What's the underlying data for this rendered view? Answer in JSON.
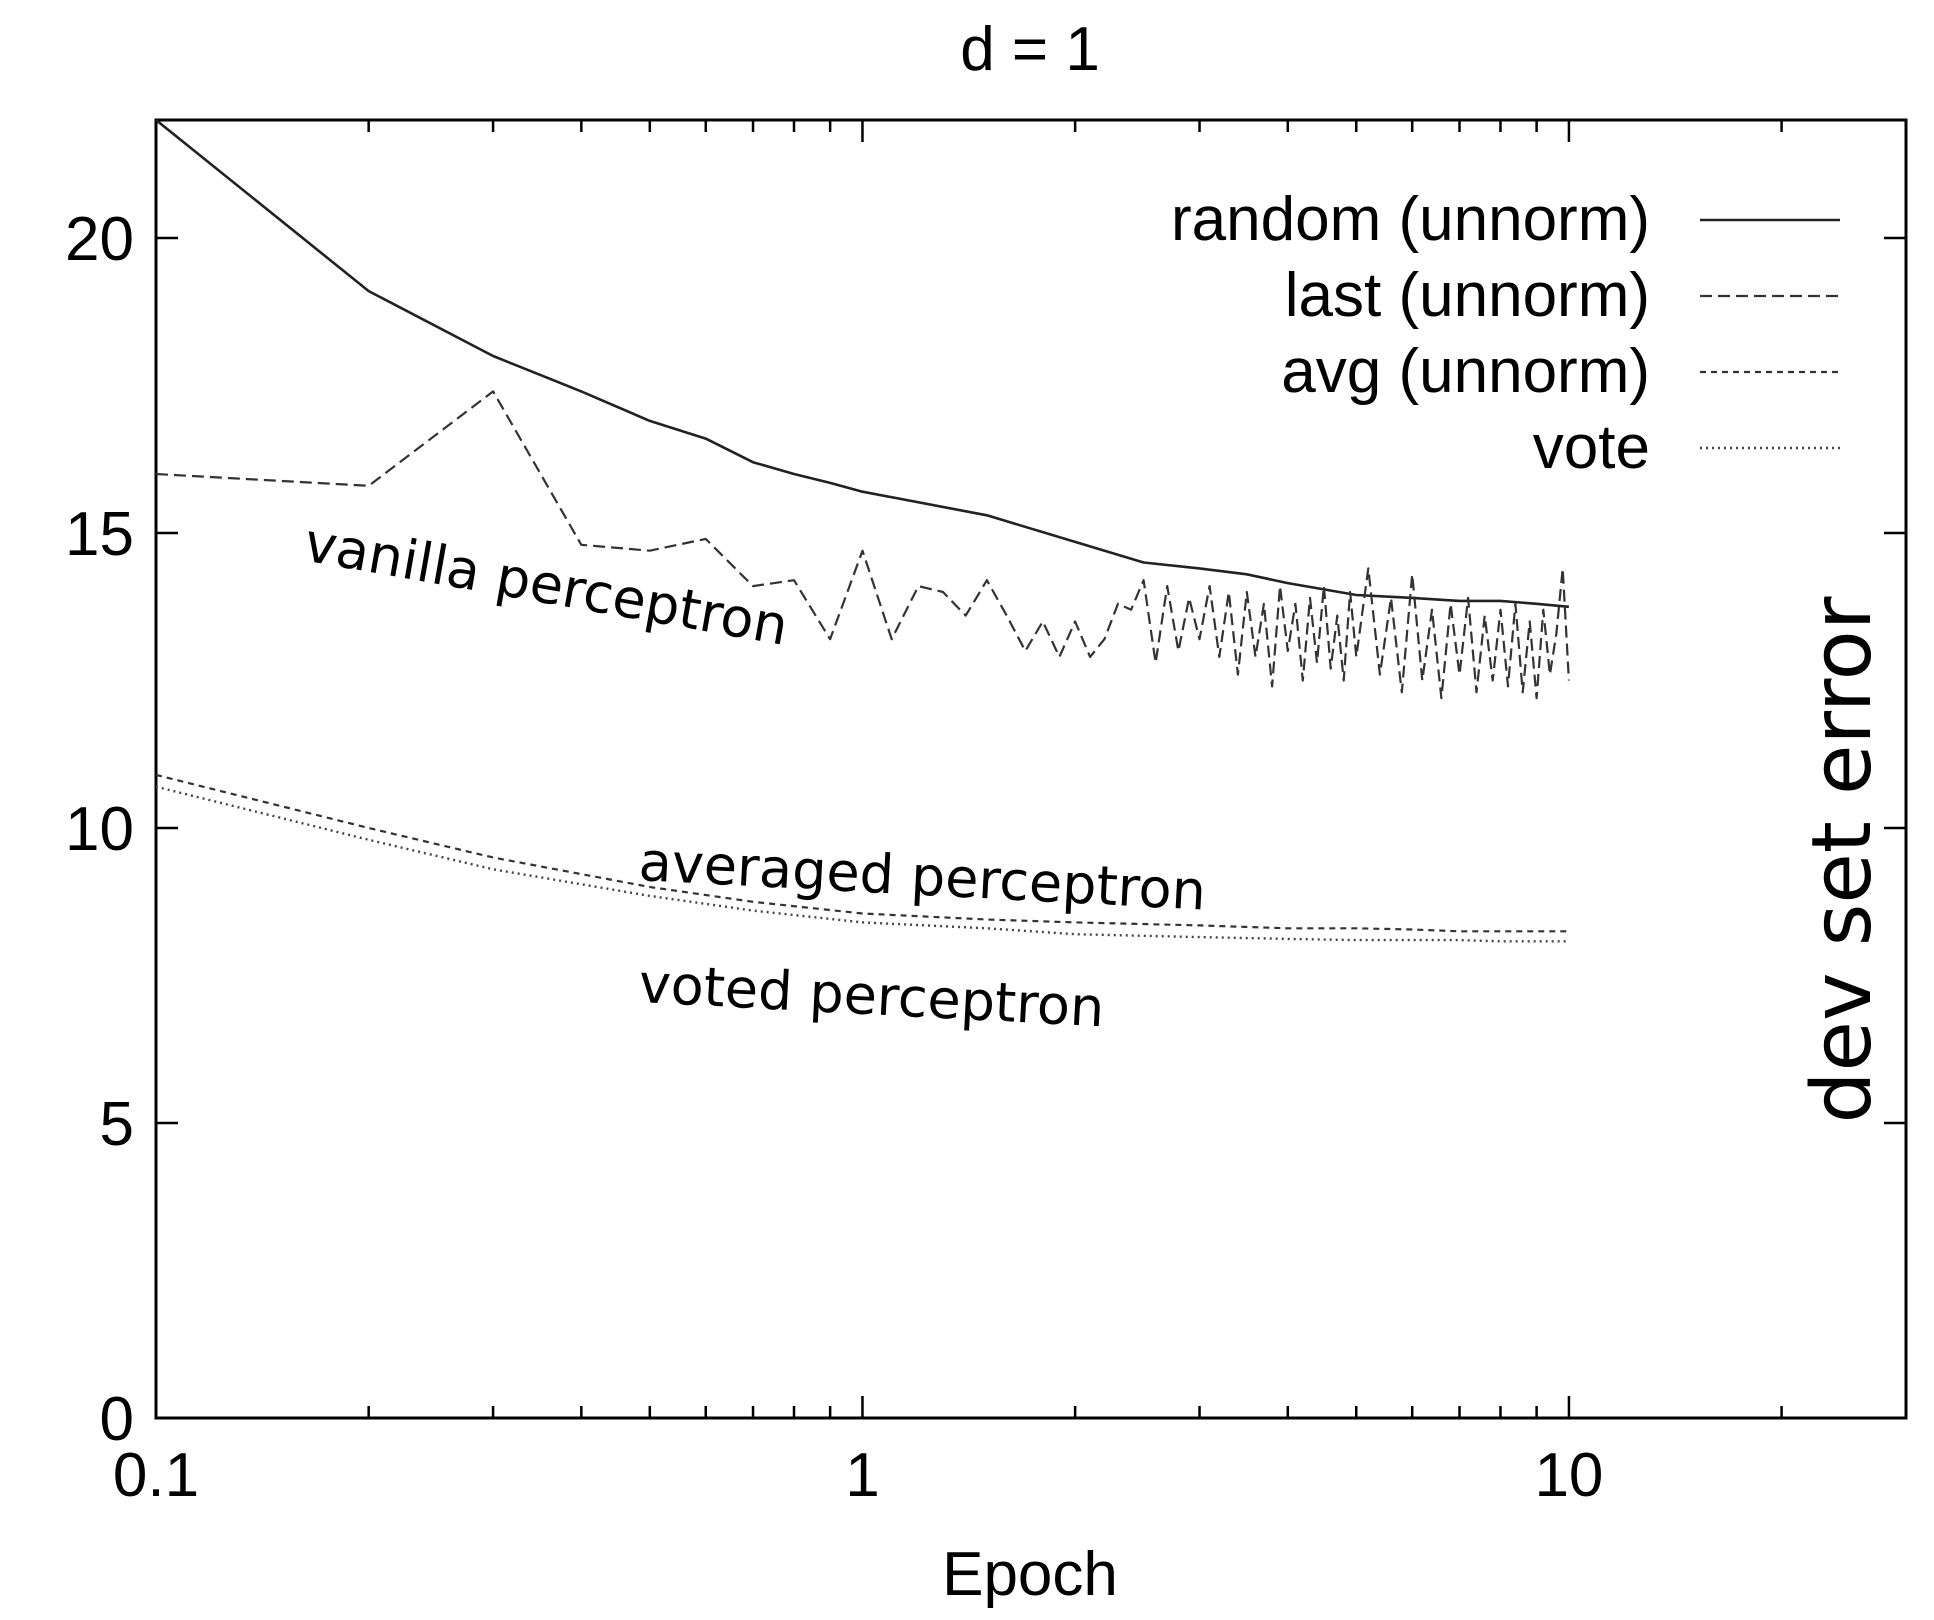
{
  "chart_data": {
    "type": "line",
    "title": "d = 1",
    "xlabel": "Epoch",
    "ylabel": "dev set error",
    "xscale": "log",
    "xlim": [
      0.1,
      30
    ],
    "ylim": [
      0,
      22
    ],
    "xticks": [
      {
        "value": 0.1,
        "label": "0.1"
      },
      {
        "value": 1,
        "label": "1"
      },
      {
        "value": 10,
        "label": "10"
      }
    ],
    "yticks": [
      {
        "value": 0,
        "label": "0"
      },
      {
        "value": 5,
        "label": "5"
      },
      {
        "value": 10,
        "label": "10"
      },
      {
        "value": 15,
        "label": "15"
      },
      {
        "value": 20,
        "label": "20"
      }
    ],
    "grid": false,
    "legend": "top-right",
    "series": [
      {
        "name": "random (unnorm)",
        "style": "solid",
        "x": [
          0.1,
          0.2,
          0.3,
          0.4,
          0.5,
          0.6,
          0.7,
          0.8,
          0.9,
          1.0,
          1.5,
          2.0,
          2.5,
          3.0,
          3.5,
          4.0,
          5.0,
          6.0,
          7.0,
          8.0,
          9.0,
          10.0
        ],
        "y": [
          22.0,
          19.1,
          18.0,
          17.4,
          16.9,
          16.6,
          16.2,
          16.0,
          15.85,
          15.7,
          15.3,
          14.85,
          14.5,
          14.4,
          14.3,
          14.15,
          13.95,
          13.9,
          13.85,
          13.85,
          13.8,
          13.75
        ]
      },
      {
        "name": "last (unnorm)",
        "style": "dashed",
        "x": [
          0.1,
          0.2,
          0.3,
          0.4,
          0.5,
          0.6,
          0.7,
          0.8,
          0.9,
          1.0,
          1.1,
          1.2,
          1.3,
          1.4,
          1.5,
          1.6,
          1.7,
          1.8,
          1.9,
          2.0,
          2.1,
          2.2,
          2.3,
          2.4,
          2.5,
          2.6,
          2.7,
          2.8,
          2.9,
          3.0,
          3.1,
          3.2,
          3.3,
          3.4,
          3.5,
          3.6,
          3.7,
          3.8,
          3.9,
          4.0,
          4.1,
          4.2,
          4.3,
          4.4,
          4.5,
          4.6,
          4.7,
          4.8,
          4.9,
          5.0,
          5.2,
          5.4,
          5.6,
          5.8,
          6.0,
          6.2,
          6.4,
          6.6,
          6.8,
          7.0,
          7.2,
          7.4,
          7.6,
          7.8,
          8.0,
          8.2,
          8.4,
          8.6,
          8.8,
          9.0,
          9.2,
          9.4,
          9.6,
          9.8,
          10.0
        ],
        "y": [
          16.0,
          15.8,
          17.4,
          14.8,
          14.7,
          14.9,
          14.1,
          14.2,
          13.2,
          14.7,
          13.2,
          14.1,
          14.0,
          13.6,
          14.2,
          13.6,
          13.0,
          13.5,
          12.9,
          13.5,
          12.9,
          13.2,
          13.8,
          13.7,
          14.2,
          12.8,
          14.1,
          13.0,
          13.9,
          13.2,
          14.1,
          12.9,
          14.0,
          12.6,
          14.0,
          12.9,
          13.8,
          12.4,
          14.1,
          13.0,
          13.8,
          12.5,
          13.9,
          12.8,
          14.1,
          12.7,
          13.6,
          12.5,
          14.0,
          12.9,
          14.4,
          12.6,
          13.9,
          12.3,
          14.3,
          12.5,
          13.7,
          12.2,
          13.8,
          12.6,
          13.9,
          12.3,
          13.6,
          12.5,
          13.7,
          12.4,
          13.8,
          12.3,
          13.5,
          12.2,
          13.7,
          12.6,
          13.3,
          14.4,
          12.5
        ]
      },
      {
        "name": "avg (unnorm)",
        "style": "short-dashed",
        "x": [
          0.1,
          0.2,
          0.3,
          0.5,
          0.7,
          1.0,
          1.5,
          2.0,
          3.0,
          4.0,
          5.0,
          6.0,
          7.0,
          8.0,
          10.0
        ],
        "y": [
          10.9,
          10.0,
          9.5,
          9.0,
          8.75,
          8.55,
          8.45,
          8.4,
          8.35,
          8.3,
          8.3,
          8.28,
          8.25,
          8.25,
          8.25
        ]
      },
      {
        "name": "vote",
        "style": "dotted",
        "x": [
          0.1,
          0.2,
          0.3,
          0.5,
          0.7,
          1.0,
          1.5,
          2.0,
          3.0,
          4.0,
          5.0,
          6.0,
          7.0,
          8.0,
          10.0
        ],
        "y": [
          10.7,
          9.8,
          9.3,
          8.85,
          8.6,
          8.4,
          8.3,
          8.2,
          8.15,
          8.12,
          8.1,
          8.1,
          8.1,
          8.08,
          8.08
        ]
      }
    ],
    "annotations": [
      {
        "text": "vanilla perceptron",
        "x": 0.22,
        "y": 14.7
      },
      {
        "text": "averaged perceptron",
        "x": 1.5,
        "y": 9.6
      },
      {
        "text": "voted perceptron",
        "x": 1.2,
        "y": 7.3
      }
    ]
  }
}
